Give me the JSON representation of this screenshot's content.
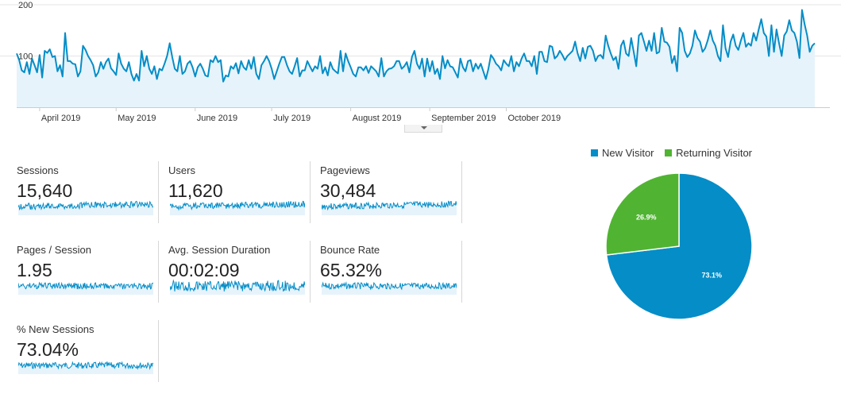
{
  "chart_data": [
    {
      "type": "area",
      "title": "",
      "xlabel": "",
      "ylabel": "",
      "y_ticks": [
        "200",
        "100"
      ],
      "ylim": [
        0,
        200
      ],
      "x_tick_labels": [
        "April 2019",
        "May 2019",
        "June 2019",
        "July 2019",
        "August 2019",
        "September 2019",
        "October 2019"
      ],
      "series": [
        {
          "values": [
            105,
            92,
            72,
            68,
            88,
            65,
            95,
            82,
            68,
            102,
            58,
            110,
            106,
            113,
            98,
            100,
            70,
            82,
            60,
            145,
            90,
            90,
            85,
            84,
            60,
            70,
            120,
            112,
            100,
            92,
            82,
            60,
            68,
            88,
            75,
            88,
            95,
            76,
            70,
            63,
            105,
            85,
            75,
            70,
            88,
            65,
            52,
            65,
            52,
            110,
            80,
            100,
            75,
            65,
            80,
            55,
            75,
            72,
            85,
            100,
            125,
            98,
            75,
            70,
            100,
            65,
            70,
            85,
            90,
            78,
            60,
            78,
            85,
            75,
            62,
            60,
            92,
            88,
            100,
            88,
            92,
            50,
            62,
            60,
            80,
            75,
            86,
            66,
            90,
            78,
            73,
            92,
            75,
            98,
            65,
            55,
            82,
            90,
            100,
            90,
            75,
            55,
            70,
            85,
            98,
            98,
            82,
            70,
            65,
            80,
            96,
            60,
            72,
            72,
            90,
            80,
            70,
            80,
            75,
            100,
            66,
            78,
            62,
            88,
            75,
            70,
            66,
            110,
            70,
            105,
            90,
            78,
            65,
            60,
            78,
            78,
            72,
            80,
            67,
            80,
            75,
            70,
            60,
            96,
            60,
            70,
            75,
            76,
            80,
            90,
            90,
            75,
            80,
            88,
            68,
            98,
            110,
            85,
            75,
            95,
            60,
            95,
            70,
            90,
            65,
            75,
            55,
            100,
            76,
            92,
            80,
            78,
            68,
            58,
            95,
            78,
            70,
            90,
            92,
            70,
            85,
            75,
            85,
            70,
            55,
            75,
            102,
            95,
            85,
            80,
            72,
            92,
            85,
            80,
            100,
            70,
            88,
            80,
            95,
            105,
            90,
            90,
            80,
            100,
            65,
            108,
            108,
            90,
            88,
            120,
            118,
            95,
            100,
            110,
            102,
            92,
            100,
            105,
            110,
            128,
            105,
            90,
            116,
            95,
            118,
            120,
            110,
            90,
            100,
            102,
            95,
            140,
            120,
            105,
            92,
            98,
            75,
            120,
            130,
            105,
            100,
            135,
            108,
            80,
            140,
            145,
            128,
            110,
            130,
            110,
            145,
            105,
            108,
            155,
            128,
            126,
            118,
            86,
            100,
            70,
            155,
            145,
            110,
            98,
            105,
            120,
            150,
            135,
            128,
            108,
            115,
            130,
            150,
            130,
            120,
            100,
            90,
            160,
            115,
            98,
            128,
            142,
            120,
            112,
            130,
            145,
            118,
            125,
            120,
            145,
            130,
            152,
            172,
            145,
            138,
            100,
            160,
            108,
            152,
            125,
            100,
            140,
            148,
            170,
            150,
            145,
            128,
            96,
            190,
            162,
            140,
            108,
            120,
            125
          ]
        }
      ]
    },
    {
      "type": "pie",
      "legend_position": "top",
      "slices": [
        {
          "name": "New Visitor",
          "value": 73.1,
          "label": "73.1%",
          "color": "#058dc7"
        },
        {
          "name": "Returning Visitor",
          "value": 26.9,
          "label": "26.9%",
          "color": "#50b432"
        }
      ]
    }
  ],
  "colors": {
    "line": "#058dc7",
    "area_fill": "#e6f3fb",
    "grid": "#e5e5e5",
    "axis": "#cccccc"
  },
  "metrics": [
    {
      "label": "Sessions",
      "value": "15,640",
      "spark_seed": 1
    },
    {
      "label": "Users",
      "value": "11,620",
      "spark_seed": 2
    },
    {
      "label": "Pageviews",
      "value": "30,484",
      "spark_seed": 3
    },
    {
      "label": "Pages / Session",
      "value": "1.95",
      "spark_seed": 4
    },
    {
      "label": "Avg. Session Duration",
      "value": "00:02:09",
      "spark_seed": 5
    },
    {
      "label": "Bounce Rate",
      "value": "65.32%",
      "spark_seed": 6
    },
    {
      "label": "% New Sessions",
      "value": "73.04%",
      "spark_seed": 7
    }
  ],
  "icons": {
    "expand": "chevron-down-icon"
  }
}
